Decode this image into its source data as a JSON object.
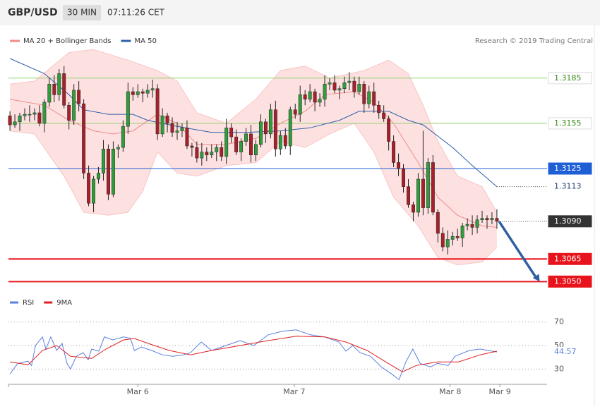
{
  "header": {
    "symbol": "GBP/USD",
    "interval": "30 MIN",
    "time": "07:11:26 CET"
  },
  "credit": "Research © 2019 Trading Central",
  "chart_data": [
    {
      "type": "candlestick",
      "xlim": [
        -0.3,
        109.2
      ],
      "ylim": [
        1.3045,
        1.322
      ],
      "up_color": "#2f9e3a",
      "down_color": "#a8202a",
      "open": [
        1.316,
        1.3154,
        1.3156,
        1.316,
        1.3161,
        1.3161,
        1.3162,
        1.3155,
        1.3169,
        1.3181,
        1.3174,
        1.3188,
        1.3167,
        1.3157,
        1.3177,
        1.3168,
        1.3122,
        1.3102,
        1.3118,
        1.3122,
        1.3138,
        1.3108,
        1.3138,
        1.3139,
        1.3153,
        1.3176,
        1.3174,
        1.3176,
        1.3175,
        1.3177,
        1.3178,
        1.3148,
        1.316,
        1.3155,
        1.3149,
        1.315,
        1.3152,
        1.314,
        1.3139,
        1.3132,
        1.3136,
        1.3134,
        1.3136,
        1.3139,
        1.3133,
        1.3152,
        1.3146,
        1.3136,
        1.3143,
        1.3148,
        1.3134,
        1.3141,
        1.3156,
        1.3148,
        1.3164,
        1.3138,
        1.3147,
        1.314,
        1.3164,
        1.3161,
        1.3174,
        1.3171,
        1.3176,
        1.3169,
        1.3171,
        1.3181,
        1.3182,
        1.3177,
        1.3178,
        1.3182,
        1.3183,
        1.3176,
        1.3181,
        1.3168,
        1.3176,
        1.3167,
        1.3162,
        1.3158,
        1.3143,
        1.3129,
        1.3125,
        1.3113,
        1.3101,
        1.3096,
        1.3118,
        1.3099,
        1.3129,
        1.3096,
        1.3082,
        1.3073,
        1.3078,
        1.308,
        1.3079,
        1.3087,
        1.3088,
        1.3086,
        1.3091,
        1.3092,
        1.3091,
        1.3092
      ],
      "high": [
        1.3163,
        1.3161,
        1.3162,
        1.3165,
        1.3167,
        1.3165,
        1.3167,
        1.3171,
        1.3185,
        1.3187,
        1.3191,
        1.3193,
        1.3169,
        1.3181,
        1.3183,
        1.3171,
        1.3127,
        1.312,
        1.3126,
        1.3144,
        1.3141,
        1.3143,
        1.3141,
        1.3157,
        1.3182,
        1.3179,
        1.3181,
        1.3178,
        1.3181,
        1.3184,
        1.3181,
        1.3165,
        1.3162,
        1.3159,
        1.3156,
        1.3155,
        1.3157,
        1.3142,
        1.3143,
        1.3142,
        1.3139,
        1.3141,
        1.3141,
        1.3143,
        1.3158,
        1.3155,
        1.3151,
        1.3145,
        1.3152,
        1.3154,
        1.3144,
        1.3161,
        1.3158,
        1.3168,
        1.317,
        1.315,
        1.3152,
        1.3166,
        1.3168,
        1.318,
        1.3177,
        1.3181,
        1.3178,
        1.3175,
        1.3187,
        1.3185,
        1.3187,
        1.318,
        1.3186,
        1.3189,
        1.3186,
        1.3186,
        1.3183,
        1.318,
        1.3182,
        1.317,
        1.3167,
        1.316,
        1.3147,
        1.3135,
        1.3128,
        1.3118,
        1.3103,
        1.3122,
        1.315,
        1.3132,
        1.3134,
        1.3098,
        1.3086,
        1.3084,
        1.3083,
        1.3085,
        1.3089,
        1.3092,
        1.3094,
        1.3094,
        1.3097,
        1.3094,
        1.3096,
        1.3098
      ],
      "low": [
        1.315,
        1.3152,
        1.315,
        1.3157,
        1.3156,
        1.3157,
        1.3153,
        1.3149,
        1.3166,
        1.3169,
        1.317,
        1.3165,
        1.3151,
        1.3154,
        1.3163,
        1.3118,
        1.31,
        1.3096,
        1.3115,
        1.3117,
        1.3104,
        1.3106,
        1.3132,
        1.3136,
        1.3148,
        1.317,
        1.3172,
        1.3169,
        1.3172,
        1.3172,
        1.3144,
        1.3146,
        1.3149,
        1.3146,
        1.3144,
        1.3146,
        1.3138,
        1.3133,
        1.3129,
        1.3127,
        1.313,
        1.3132,
        1.313,
        1.313,
        1.3128,
        1.3142,
        1.3134,
        1.313,
        1.314,
        1.3129,
        1.313,
        1.3139,
        1.3142,
        1.3145,
        1.3133,
        1.3134,
        1.3138,
        1.3134,
        1.3158,
        1.3156,
        1.3167,
        1.3169,
        1.3163,
        1.3166,
        1.3166,
        1.3177,
        1.3175,
        1.3171,
        1.3175,
        1.3177,
        1.3172,
        1.3174,
        1.3162,
        1.3165,
        1.3162,
        1.3158,
        1.3156,
        1.3137,
        1.3126,
        1.312,
        1.3109,
        1.3099,
        1.309,
        1.3093,
        1.3094,
        1.3095,
        1.3094,
        1.3076,
        1.307,
        1.3068,
        1.3074,
        1.3077,
        1.3073,
        1.3084,
        1.3081,
        1.3082,
        1.3089,
        1.3085,
        1.3088,
        1.3085
      ],
      "close": [
        1.3154,
        1.3156,
        1.316,
        1.3161,
        1.3161,
        1.3162,
        1.3155,
        1.3169,
        1.3181,
        1.3174,
        1.3188,
        1.3167,
        1.3157,
        1.3177,
        1.3168,
        1.3122,
        1.3102,
        1.3118,
        1.3122,
        1.3138,
        1.3108,
        1.3138,
        1.3139,
        1.3153,
        1.3176,
        1.3174,
        1.3176,
        1.3175,
        1.3177,
        1.3178,
        1.3148,
        1.316,
        1.3155,
        1.3149,
        1.315,
        1.3152,
        1.314,
        1.3139,
        1.3132,
        1.3136,
        1.3134,
        1.3136,
        1.3139,
        1.3133,
        1.3152,
        1.3146,
        1.3136,
        1.3143,
        1.3148,
        1.3134,
        1.3141,
        1.3156,
        1.3148,
        1.3164,
        1.3138,
        1.3147,
        1.314,
        1.3164,
        1.3161,
        1.3174,
        1.3171,
        1.3176,
        1.3169,
        1.3171,
        1.3181,
        1.3182,
        1.3177,
        1.3178,
        1.3182,
        1.3183,
        1.3176,
        1.3181,
        1.3168,
        1.3176,
        1.3167,
        1.3162,
        1.3158,
        1.3143,
        1.3129,
        1.3125,
        1.3113,
        1.3101,
        1.3096,
        1.3118,
        1.3099,
        1.3129,
        1.3096,
        1.3082,
        1.3073,
        1.3078,
        1.308,
        1.3079,
        1.3087,
        1.3088,
        1.3086,
        1.3091,
        1.3092,
        1.3091,
        1.3092,
        1.309
      ],
      "series": [
        {
          "name": "MA 20 + Bollinger Bands",
          "color": "#f08a8a",
          "x": [
            0,
            7,
            12,
            17,
            21,
            25,
            30,
            34,
            38,
            44,
            50,
            55,
            60,
            64,
            70,
            74,
            78,
            83,
            87,
            91,
            96,
            99
          ],
          "values": [
            1.3171,
            1.3167,
            1.3157,
            1.315,
            1.3148,
            1.315,
            1.3161,
            1.3155,
            1.3141,
            1.3141,
            1.3145,
            1.3155,
            1.3163,
            1.3174,
            1.3176,
            1.3169,
            1.3155,
            1.3129,
            1.3106,
            1.3094,
            1.3087,
            1.3086
          ]
        },
        {
          "name": "MA 50",
          "color": "#2d5fa8",
          "x": [
            0,
            7,
            12,
            15,
            20,
            25,
            28,
            34,
            41,
            48,
            55,
            61,
            67,
            71,
            77,
            81,
            84,
            90,
            94,
            99
          ],
          "values": [
            1.3198,
            1.3188,
            1.3174,
            1.3164,
            1.3161,
            1.3161,
            1.3157,
            1.3153,
            1.3149,
            1.3149,
            1.315,
            1.3152,
            1.3157,
            1.3163,
            1.3163,
            1.3157,
            1.3154,
            1.3139,
            1.3127,
            1.3113
          ]
        }
      ],
      "bands": {
        "color": "#fde1e1",
        "edge_color": "#f9c4c4",
        "upper": {
          "x": [
            0,
            5,
            12,
            17,
            24,
            30,
            34,
            38,
            44,
            50,
            55,
            60,
            65,
            72,
            77,
            81,
            84,
            87,
            91,
            96,
            99
          ],
          "values": [
            1.3181,
            1.3183,
            1.3202,
            1.3204,
            1.3197,
            1.319,
            1.3183,
            1.3162,
            1.3155,
            1.3171,
            1.319,
            1.3193,
            1.3185,
            1.319,
            1.3197,
            1.3188,
            1.3167,
            1.3143,
            1.312,
            1.3113,
            1.3096
          ]
        },
        "lower": {
          "x": [
            0,
            5,
            11,
            15,
            20,
            24,
            27,
            30,
            34,
            38,
            44,
            50,
            55,
            60,
            65,
            70,
            74,
            78,
            83,
            87,
            91,
            96,
            99
          ],
          "values": [
            1.315,
            1.3148,
            1.312,
            1.3096,
            1.3094,
            1.3096,
            1.311,
            1.3136,
            1.3122,
            1.312,
            1.3127,
            1.3129,
            1.3143,
            1.3139,
            1.3148,
            1.3155,
            1.3136,
            1.3106,
            1.3087,
            1.3066,
            1.3061,
            1.3063,
            1.3073
          ]
        }
      },
      "levels": [
        {
          "value": 1.3185,
          "color": "#8fcf6e",
          "style": "outline"
        },
        {
          "value": 1.3155,
          "color": "#8fcf6e",
          "style": "outline"
        },
        {
          "value": 1.3125,
          "color": "#1f5fd6",
          "style": "filled"
        },
        {
          "value": 1.309,
          "label": "1.3090",
          "color": "#333333",
          "style": "current"
        },
        {
          "value": 1.3065,
          "color": "#e8141c",
          "style": "filled"
        },
        {
          "value": 1.305,
          "label": "1.3050",
          "color": "#e8141c",
          "style": "filled"
        }
      ]
    },
    {
      "type": "line",
      "xlim": [
        -0.3,
        109.2
      ],
      "ylim": [
        17,
        77
      ],
      "yticks": [
        70,
        50,
        30
      ],
      "grid": true,
      "xticks": [
        {
          "value": 26,
          "label": "Mar 6"
        },
        {
          "value": 57.8,
          "label": "Mar 7"
        },
        {
          "value": 89.5,
          "label": "Mar 8"
        },
        {
          "value": 99.6,
          "label": "Mar 9"
        }
      ],
      "series": [
        {
          "name": "RSI",
          "color": "#5b7fe0",
          "x": [
            0,
            1.6,
            3.7,
            4.4,
            5.2,
            6.6,
            7.3,
            8.3,
            9.5,
            10.6,
            11.6,
            12.3,
            13.5,
            14.9,
            15.9,
            16.6,
            18.1,
            19.2,
            20.9,
            23.1,
            24.5,
            25.3,
            26.7,
            28.8,
            31,
            33.1,
            35.3,
            36.7,
            38.9,
            41,
            43.9,
            46.8,
            49.6,
            52.5,
            55.4,
            58.2,
            61.1,
            64,
            66.9,
            68.3,
            69.7,
            71.2,
            73.3,
            75.5,
            77.6,
            79.1,
            80.5,
            81.9,
            83.4,
            85.5,
            86.9,
            89.1,
            90.5,
            93.4,
            95.6,
            99
          ],
          "values": [
            25.8,
            34.8,
            36.7,
            33,
            50,
            57.3,
            47,
            57.3,
            45.8,
            51.8,
            34.8,
            30,
            40.9,
            43.9,
            37.9,
            47,
            45.2,
            57.3,
            54.8,
            57.3,
            56.1,
            45.8,
            48.8,
            45.8,
            42.1,
            40.9,
            42.1,
            43.9,
            53,
            45.8,
            50,
            54.2,
            50,
            59.1,
            62.1,
            63.3,
            59.1,
            57.3,
            53,
            45.2,
            50,
            43.9,
            40.9,
            31.8,
            25.8,
            20.9,
            36.1,
            47,
            34.8,
            31.8,
            34.8,
            33,
            40.9,
            45.8,
            47,
            44.57
          ]
        },
        {
          "name": "9MA",
          "color": "#e02020",
          "x": [
            0,
            3.7,
            6.6,
            9.5,
            12.3,
            16.6,
            19.5,
            23.1,
            25.3,
            28.1,
            32.4,
            36.7,
            41,
            46.8,
            52.5,
            58.2,
            64,
            68.3,
            72.6,
            76.9,
            79.8,
            82.6,
            86.9,
            91.2,
            95.6,
            99
          ],
          "values": [
            36,
            33.6,
            45.8,
            50,
            40.9,
            39,
            47,
            54.8,
            56,
            51.8,
            45.8,
            42.1,
            45.8,
            50,
            54.2,
            57.9,
            57.3,
            53,
            45.8,
            34.8,
            27.6,
            33,
            36.1,
            36.1,
            42.1,
            45.2
          ]
        }
      ]
    }
  ]
}
